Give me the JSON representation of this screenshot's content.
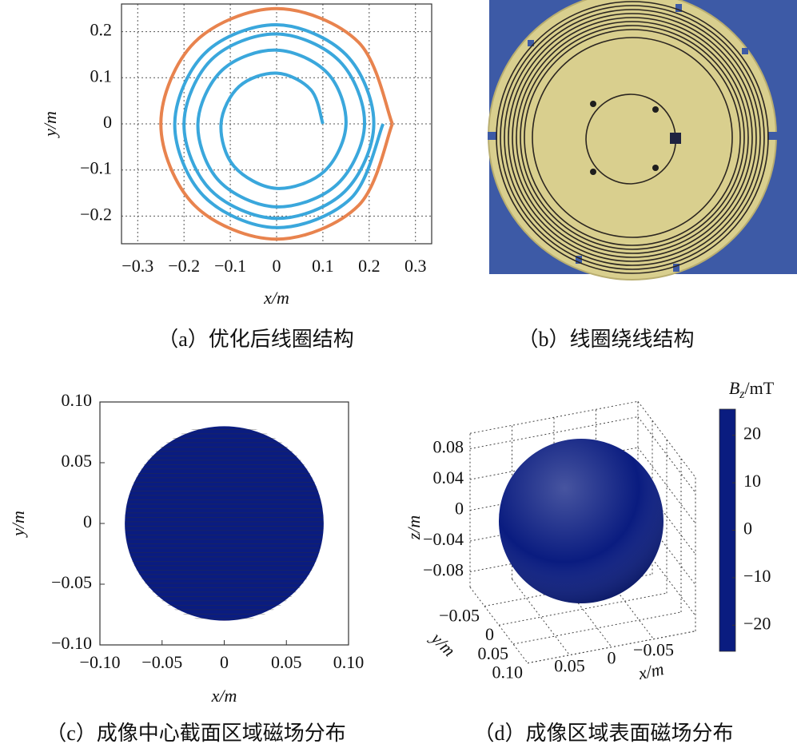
{
  "chart_data": [
    {
      "type": "line",
      "caption": "（a）优化后线圈结构",
      "xlabel": "x/m",
      "ylabel": "y/m",
      "xlim": [
        -0.335,
        0.335
      ],
      "ylim": [
        -0.26,
        0.26
      ],
      "xticks": [
        {
          "value": -0.3,
          "label": "−0.3"
        },
        {
          "value": -0.2,
          "label": "−0.2"
        },
        {
          "value": -0.1,
          "label": "−0.1"
        },
        0,
        0.1,
        0.2,
        0.3
      ],
      "yticks": [
        {
          "value": -0.2,
          "label": "−0.2"
        },
        {
          "value": -0.1,
          "label": "−0.1"
        },
        0,
        0.1,
        0.2
      ],
      "grid": true,
      "series": [
        {
          "color": "#e8834e",
          "x": [
            0.25,
            0.177,
            0,
            -0.177,
            -0.25,
            -0.177,
            0,
            0.177,
            0.25
          ],
          "y": [
            0,
            0.177,
            0.25,
            0.177,
            0,
            -0.177,
            -0.25,
            -0.177,
            0
          ]
        },
        {
          "color": "#3aa7dc",
          "x": [
            0.1,
            0.074,
            0,
            -0.081,
            -0.12,
            -0.092,
            0,
            0.103,
            0.15,
            0.11,
            0,
            -0.117,
            -0.17,
            -0.124,
            0,
            0.131,
            0.19,
            0.136,
            0,
            -0.14,
            -0.2,
            -0.143,
            0,
            0.147,
            0.21,
            0.15,
            0,
            -0.154,
            -0.22,
            -0.157,
            0,
            0.161,
            0.23
          ],
          "y": [
            0,
            0.074,
            0.11,
            0.081,
            0,
            -0.092,
            -0.14,
            -0.103,
            0,
            0.11,
            0.16,
            0.117,
            0,
            -0.124,
            -0.18,
            -0.131,
            0,
            0.136,
            0.195,
            0.14,
            0,
            -0.143,
            -0.205,
            -0.147,
            0,
            0.15,
            0.215,
            0.154,
            0,
            -0.157,
            -0.225,
            -0.161,
            0
          ]
        }
      ]
    },
    {
      "type": "photo",
      "caption": "（b）线圈绕线结构"
    },
    {
      "type": "contour",
      "caption": "（c）成像中心截面区域磁场分布",
      "xlabel": "x/m",
      "ylabel": "y/m",
      "xlim": [
        -0.1,
        0.1
      ],
      "ylim": [
        -0.1,
        0.1
      ],
      "xticks": [
        {
          "value": -0.1,
          "label": "−0.10"
        },
        {
          "value": -0.05,
          "label": "−0.05"
        },
        0,
        0.05,
        {
          "value": 0.1,
          "label": "0.10"
        }
      ],
      "yticks": [
        {
          "value": -0.1,
          "label": "−0.10"
        },
        {
          "value": -0.05,
          "label": "−0.05"
        },
        0,
        0.05,
        {
          "value": 0.1,
          "label": "0.10"
        }
      ],
      "region_radius": 0.08,
      "colormap": "jet"
    },
    {
      "type": "surface3d",
      "caption": "（d）成像区域表面磁场分布",
      "xlabel": "x/m",
      "ylabel": "y/m",
      "zlabel": "z/m",
      "xlim": [
        -0.1,
        0.1
      ],
      "ylim": [
        -0.1,
        0.1
      ],
      "zlim": [
        -0.1,
        0.1
      ],
      "xticks": [
        {
          "value": -0.05,
          "label": "−0.05"
        },
        0,
        0.05
      ],
      "yticks": [
        {
          "value": -0.05,
          "label": "−0.05"
        },
        0,
        0.05,
        {
          "value": 0.1,
          "label": "0.10"
        }
      ],
      "zticks": [
        {
          "value": -0.08,
          "label": "−0.08"
        },
        {
          "value": -0.04,
          "label": "−0.04"
        },
        0,
        0.04,
        0.08
      ],
      "colormap": "jet",
      "colorbar": {
        "label": {
          "symbol": "B",
          "subscript": "z",
          "unit": "/mT"
        },
        "clim": [
          -25.5,
          25.5
        ],
        "ticks": [
          {
            "value": -20,
            "label": "−20"
          },
          {
            "value": -10,
            "label": "−10"
          },
          0,
          10,
          20
        ]
      }
    }
  ]
}
